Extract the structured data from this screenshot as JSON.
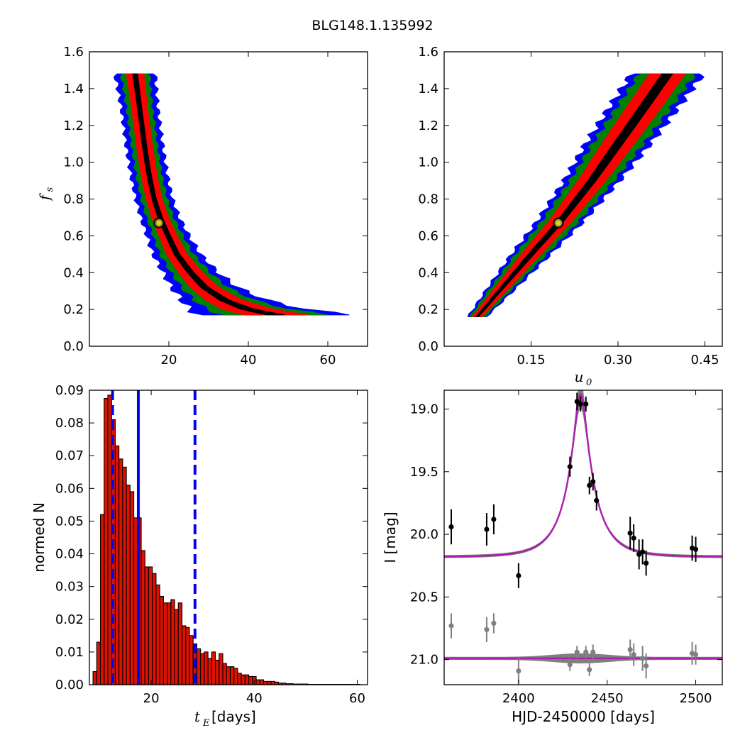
{
  "figure": {
    "title": "BLG148.1.135992"
  },
  "chart_data": [
    {
      "type": "heatmap",
      "panel": "top-left",
      "title": "",
      "xlabel": "",
      "ylabel": "f",
      "ylabel_sub": "s",
      "xlim": [
        0,
        70
      ],
      "ylim": [
        0.0,
        1.6
      ],
      "xticks": [
        20,
        40,
        60
      ],
      "yticks": [
        0.0,
        0.2,
        0.4,
        0.6,
        0.8,
        1.0,
        1.2,
        1.4,
        1.6
      ],
      "levels": [
        {
          "name": "outer",
          "color": "#0000ff",
          "width_scale": 2.3
        },
        {
          "name": "middle",
          "color": "#008000",
          "width_scale": 1.6
        },
        {
          "name": "inner",
          "color": "#ff0000",
          "width_scale": 1.0
        },
        {
          "name": "core",
          "color": "#000000",
          "width_scale": 0.28
        }
      ],
      "ridge": [
        {
          "y": 1.48,
          "x": 11.5,
          "hw": 2.2
        },
        {
          "y": 1.4,
          "x": 12.0,
          "hw": 2.1
        },
        {
          "y": 1.3,
          "x": 12.6,
          "hw": 2.0
        },
        {
          "y": 1.2,
          "x": 13.2,
          "hw": 2.0
        },
        {
          "y": 1.1,
          "x": 13.8,
          "hw": 2.0
        },
        {
          "y": 1.0,
          "x": 14.5,
          "hw": 2.0
        },
        {
          "y": 0.9,
          "x": 15.3,
          "hw": 2.0
        },
        {
          "y": 0.8,
          "x": 16.3,
          "hw": 2.0
        },
        {
          "y": 0.7,
          "x": 17.8,
          "hw": 2.1
        },
        {
          "y": 0.6,
          "x": 19.8,
          "hw": 2.3
        },
        {
          "y": 0.5,
          "x": 22.0,
          "hw": 2.6
        },
        {
          "y": 0.4,
          "x": 25.5,
          "hw": 3.0
        },
        {
          "y": 0.32,
          "x": 29.0,
          "hw": 3.6
        },
        {
          "y": 0.25,
          "x": 34.0,
          "hw": 4.6
        },
        {
          "y": 0.2,
          "x": 40.0,
          "hw": 6.5
        },
        {
          "y": 0.17,
          "x": 47.0,
          "hw": 8.0
        }
      ],
      "best_fit": {
        "x": 17.5,
        "y": 0.67
      }
    },
    {
      "type": "heatmap",
      "panel": "top-right",
      "title": "",
      "xlabel": "u",
      "xlabel_sub": "0",
      "ylabel": "",
      "xlim": [
        0.0,
        0.48
      ],
      "ylim": [
        0.0,
        1.6
      ],
      "xticks": [
        0.15,
        0.3,
        0.45
      ],
      "xtick_labels": [
        "0.15",
        "0.30",
        "0.45"
      ],
      "yticks": [
        0.0,
        0.2,
        0.4,
        0.6,
        0.8,
        1.0,
        1.2,
        1.4,
        1.6
      ],
      "levels": [
        {
          "name": "outer",
          "color": "#0000ff",
          "width_scale": 2.0
        },
        {
          "name": "middle",
          "color": "#008000",
          "width_scale": 1.55
        },
        {
          "name": "inner",
          "color": "#ff0000",
          "width_scale": 1.0
        },
        {
          "name": "core",
          "color": "#000000",
          "width_scale": 0.3
        }
      ],
      "ridge": [
        {
          "y": 0.16,
          "x": 0.057,
          "hw": 0.008
        },
        {
          "y": 0.3,
          "x": 0.095,
          "hw": 0.012
        },
        {
          "y": 0.5,
          "x": 0.15,
          "hw": 0.017
        },
        {
          "y": 0.67,
          "x": 0.198,
          "hw": 0.02
        },
        {
          "y": 0.9,
          "x": 0.255,
          "hw": 0.024
        },
        {
          "y": 1.1,
          "x": 0.3,
          "hw": 0.028
        },
        {
          "y": 1.3,
          "x": 0.345,
          "hw": 0.03
        },
        {
          "y": 1.48,
          "x": 0.385,
          "hw": 0.031
        }
      ],
      "best_fit": {
        "x": 0.197,
        "y": 0.67
      }
    },
    {
      "type": "bar",
      "panel": "bottom-left",
      "title": "",
      "xlabel": "t",
      "xlabel_sub": "E",
      "xlabel_unit": " [days]",
      "ylabel": "normed N",
      "xlim": [
        8,
        62
      ],
      "ylim": [
        0.0,
        0.09
      ],
      "xticks": [
        20,
        40,
        60
      ],
      "yticks": [
        0.0,
        0.01,
        0.02,
        0.03,
        0.04,
        0.05,
        0.06,
        0.07,
        0.08,
        0.09
      ],
      "ytick_labels": [
        "0.00",
        "0.01",
        "0.02",
        "0.03",
        "0.04",
        "0.05",
        "0.06",
        "0.07",
        "0.08",
        "0.09"
      ],
      "bar_color": "#dd1100",
      "bin_start": 8.7,
      "bin_width": 0.72,
      "values": [
        0.004,
        0.013,
        0.052,
        0.0875,
        0.0885,
        0.081,
        0.073,
        0.069,
        0.0665,
        0.061,
        0.059,
        0.051,
        0.051,
        0.041,
        0.036,
        0.036,
        0.034,
        0.0305,
        0.027,
        0.025,
        0.025,
        0.026,
        0.023,
        0.025,
        0.018,
        0.0175,
        0.015,
        0.0125,
        0.011,
        0.0095,
        0.01,
        0.008,
        0.01,
        0.0075,
        0.0095,
        0.0065,
        0.0055,
        0.0055,
        0.005,
        0.0035,
        0.003,
        0.003,
        0.0025,
        0.0025,
        0.0015,
        0.0015,
        0.001,
        0.001,
        0.001,
        0.0008,
        0.0005,
        0.0005,
        0.0003,
        0.0003,
        0.0002,
        0.0002,
        0.0002,
        0.0002,
        0.0001,
        0.0001,
        0.0001,
        0.0001,
        0.0001,
        0.0001,
        0.0001,
        0.0001,
        0.0001,
        0.0001,
        0.0001,
        0.0001,
        0.0001,
        0.0001
      ],
      "median": 17.5,
      "lower": 12.5,
      "upper": 28.5,
      "line_color": "#0000ee"
    },
    {
      "type": "scatter",
      "panel": "bottom-right",
      "title": "",
      "xlabel": "HJD-2450000 [days]",
      "ylabel": "I [mag]",
      "xlim": [
        2358,
        2515
      ],
      "ylim": [
        21.2,
        18.85
      ],
      "y_inverted": true,
      "xticks": [
        2400,
        2450,
        2500
      ],
      "yticks": [
        19.0,
        19.5,
        20.0,
        20.5,
        21.0
      ],
      "model": {
        "t0": 2435.0,
        "tE": 17.5,
        "u0": 0.197,
        "baseline": 20.18,
        "peak": 18.88
      },
      "model_color": "#aa22aa",
      "band_color": "#7f7f7f",
      "residual_baseline": 20.99,
      "series": [
        {
          "color": "#000000",
          "points": [
            {
              "x": 2362,
              "y": 19.94,
              "err": 0.14
            },
            {
              "x": 2382,
              "y": 19.96,
              "err": 0.13
            },
            {
              "x": 2386,
              "y": 19.88,
              "err": 0.12
            },
            {
              "x": 2400,
              "y": 20.33,
              "err": 0.1
            },
            {
              "x": 2429,
              "y": 19.46,
              "err": 0.08
            },
            {
              "x": 2433,
              "y": 18.94,
              "err": 0.07
            },
            {
              "x": 2435,
              "y": 18.96,
              "err": 0.06
            },
            {
              "x": 2438,
              "y": 18.96,
              "err": 0.06
            },
            {
              "x": 2440,
              "y": 19.61,
              "err": 0.07
            },
            {
              "x": 2442,
              "y": 19.58,
              "err": 0.07
            },
            {
              "x": 2444,
              "y": 19.73,
              "err": 0.08
            },
            {
              "x": 2463,
              "y": 19.99,
              "err": 0.13
            },
            {
              "x": 2465,
              "y": 20.03,
              "err": 0.11
            },
            {
              "x": 2468,
              "y": 20.16,
              "err": 0.12
            },
            {
              "x": 2470,
              "y": 20.14,
              "err": 0.1
            },
            {
              "x": 2472,
              "y": 20.23,
              "err": 0.1
            },
            {
              "x": 2498,
              "y": 20.11,
              "err": 0.1
            },
            {
              "x": 2500,
              "y": 20.12,
              "err": 0.1
            }
          ]
        },
        {
          "color": "#808080",
          "points": [
            {
              "x": 2362,
              "y": 20.73,
              "err": 0.1
            },
            {
              "x": 2382,
              "y": 20.76,
              "err": 0.1
            },
            {
              "x": 2386,
              "y": 20.71,
              "err": 0.08
            },
            {
              "x": 2400,
              "y": 21.09,
              "err": 0.1
            },
            {
              "x": 2429,
              "y": 21.04,
              "err": 0.05
            },
            {
              "x": 2433,
              "y": 20.94,
              "err": 0.05
            },
            {
              "x": 2438,
              "y": 20.94,
              "err": 0.05
            },
            {
              "x": 2440,
              "y": 21.08,
              "err": 0.05
            },
            {
              "x": 2442,
              "y": 20.94,
              "err": 0.06
            },
            {
              "x": 2463,
              "y": 20.92,
              "err": 0.08
            },
            {
              "x": 2465,
              "y": 20.96,
              "err": 0.09
            },
            {
              "x": 2470,
              "y": 20.99,
              "err": 0.1
            },
            {
              "x": 2472,
              "y": 21.05,
              "err": 0.1
            },
            {
              "x": 2498,
              "y": 20.95,
              "err": 0.09
            },
            {
              "x": 2500,
              "y": 20.96,
              "err": 0.08
            }
          ]
        }
      ]
    }
  ]
}
